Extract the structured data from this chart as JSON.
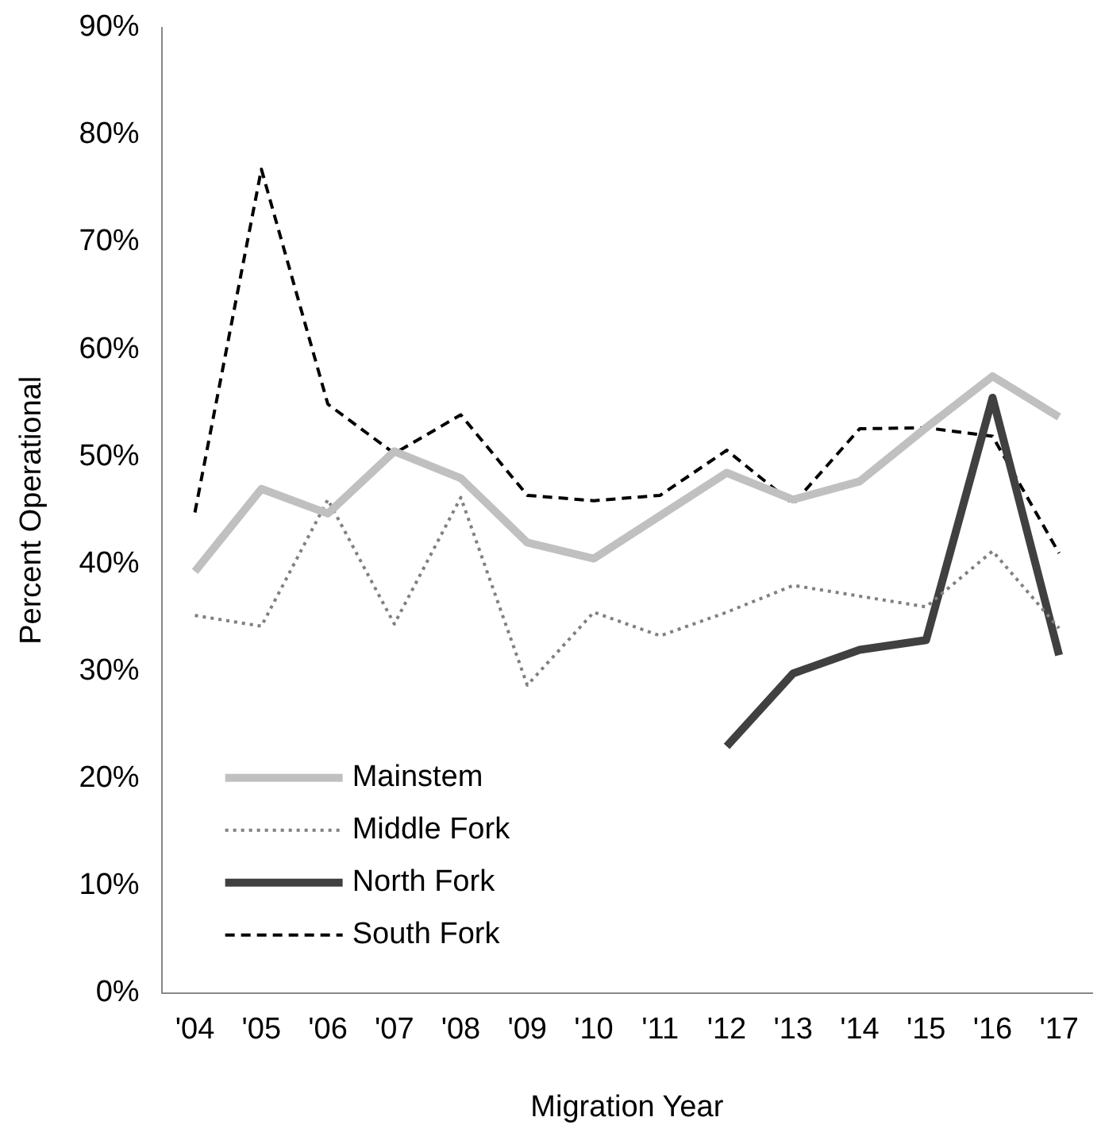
{
  "chart_data": {
    "type": "line",
    "xlabel": "Migration Year",
    "ylabel": "Percent Operational",
    "categories": [
      "'04",
      "'05",
      "'06",
      "'07",
      "'08",
      "'09",
      "'10",
      "'11",
      "'12",
      "'13",
      "'14",
      "'15",
      "'16",
      "'17"
    ],
    "ylim": [
      0,
      90
    ],
    "yticks": [
      {
        "value": 0,
        "label": "0%"
      },
      {
        "value": 10,
        "label": "10%"
      },
      {
        "value": 20,
        "label": "20%"
      },
      {
        "value": 30,
        "label": "30%"
      },
      {
        "value": 40,
        "label": "40%"
      },
      {
        "value": 50,
        "label": "50%"
      },
      {
        "value": 60,
        "label": "60%"
      },
      {
        "value": 70,
        "label": "70%"
      },
      {
        "value": 80,
        "label": "80%"
      },
      {
        "value": 90,
        "label": "90%"
      }
    ],
    "grid": false,
    "legend": "bottom left",
    "marker": "none",
    "series": [
      {
        "name": "Mainstem",
        "color": "#c0c0c0",
        "line_style": "solid",
        "values": [
          39.3,
          47,
          44.7,
          50.5,
          48,
          42,
          40.5,
          44.5,
          48.5,
          46,
          47.7,
          52.7,
          57.5,
          53.7
        ]
      },
      {
        "name": "Middle Fork",
        "color": "#808080",
        "line_style": "dotted",
        "values": [
          35.2,
          34.2,
          46,
          34.4,
          46.2,
          28.7,
          35.5,
          33.3,
          35.5,
          38,
          37,
          36,
          41.2,
          34
        ]
      },
      {
        "name": "North Fork",
        "color": "#404040",
        "line_style": "solid",
        "values": [
          null,
          null,
          null,
          null,
          null,
          null,
          null,
          null,
          23,
          29.8,
          32,
          32.9,
          55.5,
          31.5
        ]
      },
      {
        "name": "South Fork",
        "color": "#000000",
        "line_style": "dashed",
        "values": [
          44.8,
          76.8,
          54.9,
          50.3,
          53.9,
          46.4,
          45.9,
          46.4,
          50.6,
          45.6,
          52.6,
          52.7,
          51.9,
          41
        ]
      }
    ]
  }
}
